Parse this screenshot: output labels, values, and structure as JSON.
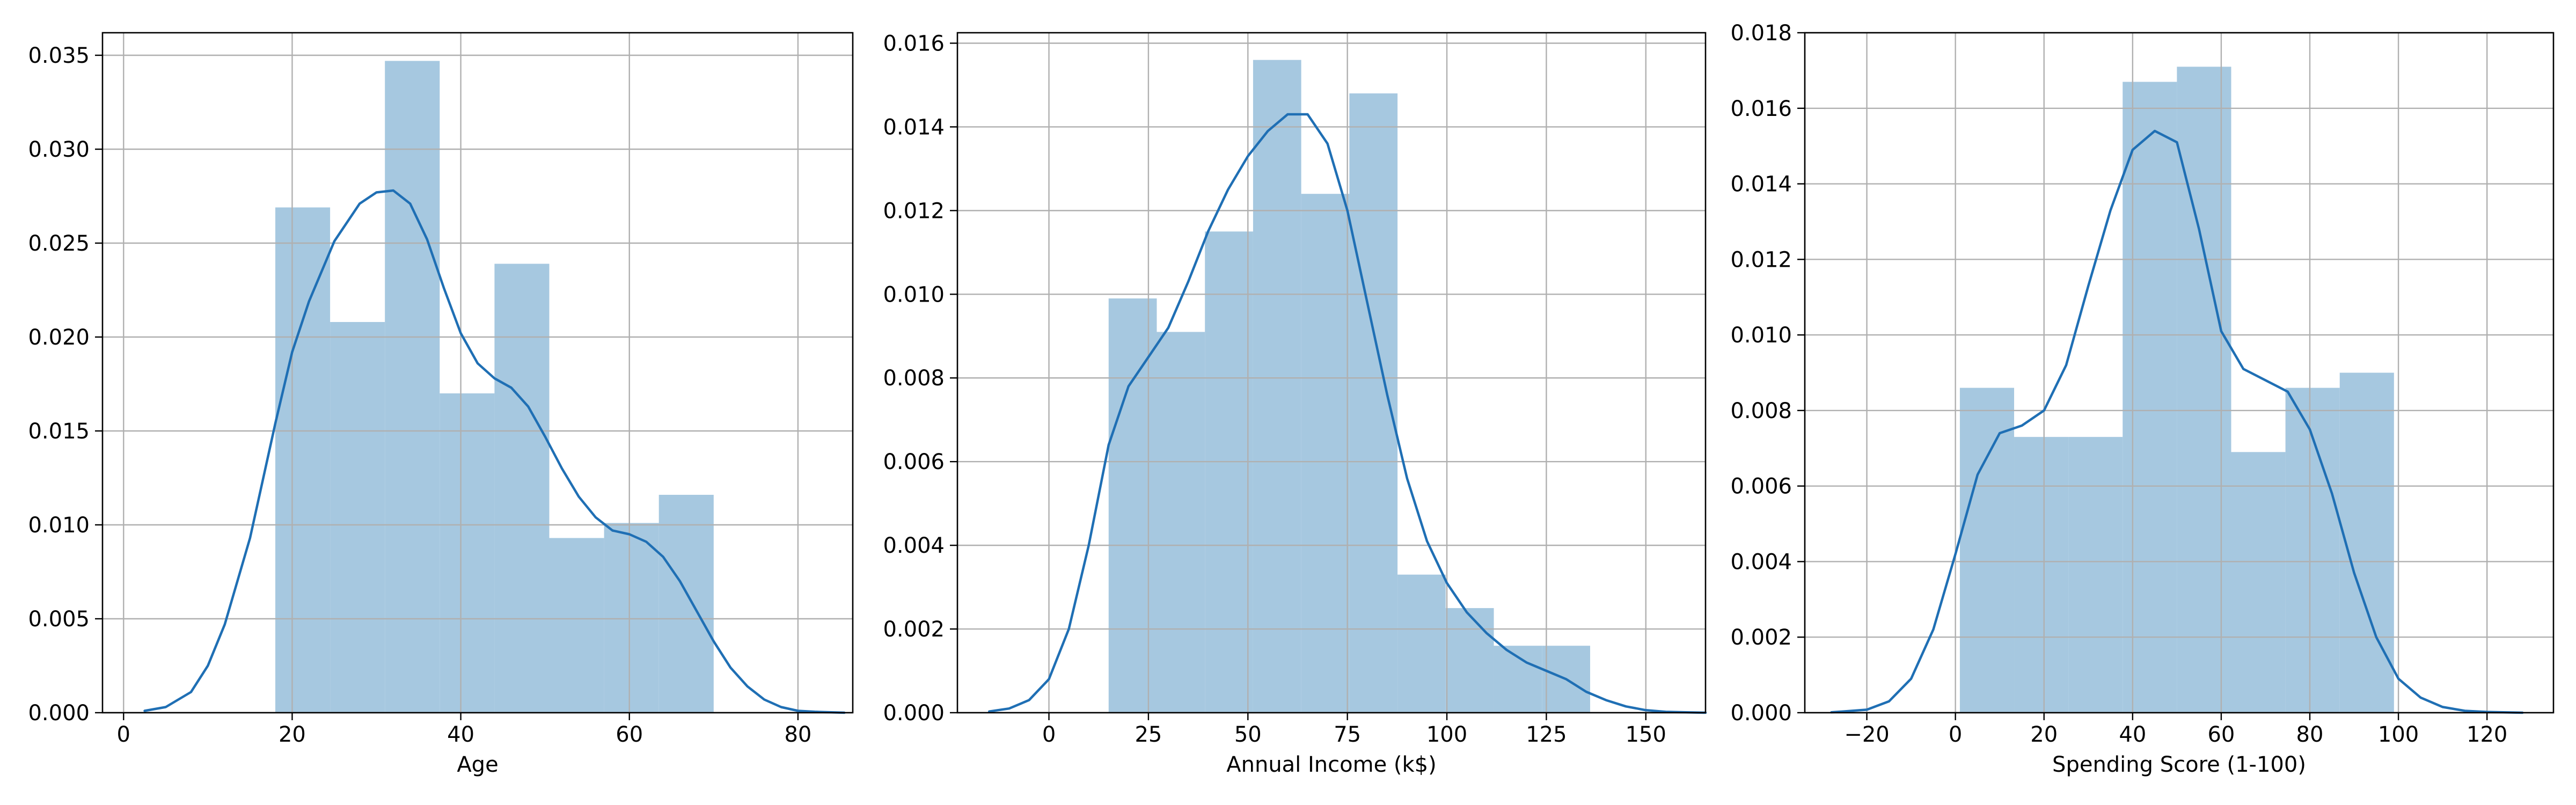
{
  "chart_data": [
    {
      "type": "bar",
      "subtype": "histogram_with_kde",
      "xlabel": "Age",
      "ylabel": "",
      "xlim": [
        -2.5,
        86.5
      ],
      "ylim": [
        0,
        0.0362
      ],
      "xticks": [
        0,
        20,
        40,
        60,
        80
      ],
      "xtick_labels": [
        "0",
        "20",
        "40",
        "60",
        "80"
      ],
      "yticks": [
        0,
        0.005,
        0.01,
        0.015,
        0.02,
        0.025,
        0.03,
        0.035
      ],
      "ytick_labels": [
        "0.000",
        "0.005",
        "0.010",
        "0.015",
        "0.020",
        "0.025",
        "0.030",
        "0.035"
      ],
      "grid": true,
      "bins": [
        {
          "x0": 18.0,
          "x1": 24.5,
          "value": 0.0269
        },
        {
          "x0": 24.5,
          "x1": 31.0,
          "value": 0.0208
        },
        {
          "x0": 31.0,
          "x1": 37.5,
          "value": 0.0347
        },
        {
          "x0": 37.5,
          "x1": 44.0,
          "value": 0.017
        },
        {
          "x0": 44.0,
          "x1": 50.5,
          "value": 0.0239
        },
        {
          "x0": 50.5,
          "x1": 57.0,
          "value": 0.0093
        },
        {
          "x0": 57.0,
          "x1": 63.5,
          "value": 0.0101
        },
        {
          "x0": 63.5,
          "x1": 70.0,
          "value": 0.0116
        }
      ],
      "kde": {
        "x": [
          2.5,
          5,
          8,
          10,
          12,
          15,
          18,
          20,
          22,
          25,
          28,
          30,
          32,
          34,
          36,
          38,
          40,
          42,
          44,
          46,
          48,
          50,
          52,
          54,
          56,
          58,
          60,
          62,
          64,
          66,
          68,
          70,
          72,
          74,
          76,
          78,
          80,
          82,
          85.5
        ],
        "y": [
          0.0001,
          0.0003,
          0.0011,
          0.0025,
          0.0047,
          0.0093,
          0.0154,
          0.0192,
          0.0219,
          0.0251,
          0.0271,
          0.0277,
          0.0278,
          0.0271,
          0.0252,
          0.0226,
          0.0202,
          0.0186,
          0.0178,
          0.0173,
          0.0163,
          0.0147,
          0.013,
          0.0115,
          0.0104,
          0.0097,
          0.0095,
          0.0091,
          0.0083,
          0.007,
          0.0054,
          0.0038,
          0.0024,
          0.0014,
          0.0007,
          0.0003,
          0.0001,
          5e-05,
          0.0
        ]
      },
      "colors": {
        "bar": "#a6c8e0",
        "line": "#1f6fb4"
      }
    },
    {
      "type": "bar",
      "subtype": "histogram_with_kde",
      "xlabel": "Annual Income (k$)",
      "ylabel": "",
      "xlim": [
        -23,
        165
      ],
      "ylim": [
        0,
        0.01625
      ],
      "xticks": [
        0,
        25,
        50,
        75,
        100,
        125,
        150
      ],
      "xtick_labels": [
        "0",
        "25",
        "50",
        "75",
        "100",
        "125",
        "150"
      ],
      "yticks": [
        0,
        0.002,
        0.004,
        0.006,
        0.008,
        0.01,
        0.012,
        0.014,
        0.016
      ],
      "ytick_labels": [
        "0.000",
        "0.002",
        "0.004",
        "0.006",
        "0.008",
        "0.010",
        "0.012",
        "0.014",
        "0.016"
      ],
      "grid": true,
      "bins": [
        {
          "x0": 15.0,
          "x1": 27.1,
          "value": 0.0099
        },
        {
          "x0": 27.1,
          "x1": 39.2,
          "value": 0.0091
        },
        {
          "x0": 39.2,
          "x1": 51.3,
          "value": 0.0115
        },
        {
          "x0": 51.3,
          "x1": 63.4,
          "value": 0.0156
        },
        {
          "x0": 63.4,
          "x1": 75.5,
          "value": 0.0124
        },
        {
          "x0": 75.5,
          "x1": 87.6,
          "value": 0.0148
        },
        {
          "x0": 87.6,
          "x1": 99.7,
          "value": 0.0033
        },
        {
          "x0": 99.7,
          "x1": 111.8,
          "value": 0.0025
        },
        {
          "x0": 111.8,
          "x1": 123.9,
          "value": 0.0016
        },
        {
          "x0": 123.9,
          "x1": 136.0,
          "value": 0.0016
        }
      ],
      "kde": {
        "x": [
          -15,
          -10,
          -5,
          0,
          5,
          10,
          15,
          20,
          25,
          30,
          35,
          40,
          45,
          50,
          55,
          60,
          65,
          70,
          75,
          80,
          85,
          90,
          95,
          100,
          105,
          110,
          115,
          120,
          125,
          130,
          135,
          140,
          145,
          150,
          155,
          160,
          165
        ],
        "y": [
          3e-05,
          0.0001,
          0.0003,
          0.0008,
          0.002,
          0.004,
          0.0064,
          0.0078,
          0.0085,
          0.0092,
          0.0103,
          0.0115,
          0.0125,
          0.0133,
          0.0139,
          0.0143,
          0.0143,
          0.0136,
          0.012,
          0.0098,
          0.0076,
          0.0056,
          0.0041,
          0.0031,
          0.0024,
          0.0019,
          0.0015,
          0.0012,
          0.001,
          0.0008,
          0.0005,
          0.0003,
          0.00015,
          6e-05,
          2e-05,
          1e-05,
          0.0
        ]
      },
      "colors": {
        "bar": "#a6c8e0",
        "line": "#1f6fb4"
      }
    },
    {
      "type": "bar",
      "subtype": "histogram_with_kde",
      "xlabel": "Spending Score (1-100)",
      "ylabel": "",
      "xlim": [
        -34,
        135
      ],
      "ylim": [
        0,
        0.018
      ],
      "xticks": [
        -20,
        0,
        20,
        40,
        60,
        80,
        100,
        120
      ],
      "xtick_labels": [
        "−20",
        "0",
        "20",
        "40",
        "60",
        "80",
        "100",
        "120"
      ],
      "yticks": [
        0,
        0.002,
        0.004,
        0.006,
        0.008,
        0.01,
        0.012,
        0.014,
        0.016,
        0.018
      ],
      "ytick_labels": [
        "0.000",
        "0.002",
        "0.004",
        "0.006",
        "0.008",
        "0.010",
        "0.012",
        "0.014",
        "0.016",
        "0.018"
      ],
      "grid": true,
      "bins": [
        {
          "x0": 1.0,
          "x1": 13.25,
          "value": 0.0086
        },
        {
          "x0": 13.25,
          "x1": 25.5,
          "value": 0.0073
        },
        {
          "x0": 25.5,
          "x1": 37.75,
          "value": 0.0073
        },
        {
          "x0": 37.75,
          "x1": 50.0,
          "value": 0.0167
        },
        {
          "x0": 50.0,
          "x1": 62.25,
          "value": 0.0171
        },
        {
          "x0": 62.25,
          "x1": 74.5,
          "value": 0.0069
        },
        {
          "x0": 74.5,
          "x1": 86.75,
          "value": 0.0086
        },
        {
          "x0": 86.75,
          "x1": 99.0,
          "value": 0.009
        }
      ],
      "kde": {
        "x": [
          -28,
          -20,
          -15,
          -10,
          -5,
          0,
          5,
          10,
          15,
          20,
          25,
          30,
          35,
          40,
          45,
          50,
          55,
          60,
          65,
          70,
          75,
          80,
          85,
          90,
          95,
          100,
          105,
          110,
          115,
          120,
          128
        ],
        "y": [
          1e-05,
          8e-05,
          0.0003,
          0.0009,
          0.0022,
          0.0042,
          0.0063,
          0.0074,
          0.0076,
          0.008,
          0.0092,
          0.0113,
          0.0133,
          0.0149,
          0.0154,
          0.0151,
          0.0128,
          0.0101,
          0.0091,
          0.0088,
          0.0085,
          0.0075,
          0.0058,
          0.0037,
          0.002,
          0.0009,
          0.0004,
          0.00015,
          5e-05,
          2e-05,
          0.0
        ]
      },
      "colors": {
        "bar": "#a6c8e0",
        "line": "#1f6fb4"
      }
    }
  ]
}
